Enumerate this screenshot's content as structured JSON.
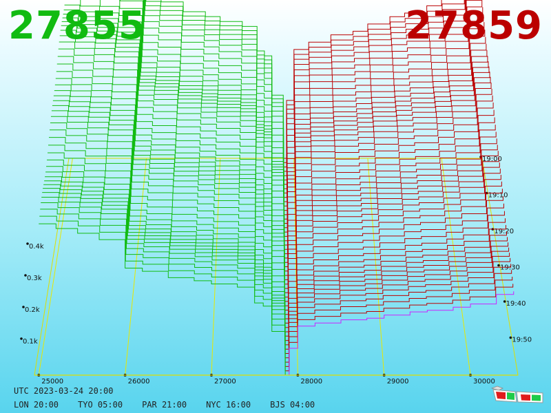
{
  "header": {
    "bid_price": "27855",
    "ask_price": "27859",
    "bid_color": "#11bb11",
    "ask_color": "#bb0000"
  },
  "footer": {
    "utc": "UTC 2023-03-24 20:00",
    "timezones": [
      "LON 20:00",
      "TYO 05:00",
      "PAR 21:00",
      "NYC 16:00",
      "BJS 04:00"
    ]
  },
  "icons": {
    "glasses": "3d-glasses-icon"
  },
  "chart_data": {
    "type": "area",
    "price_axis": {
      "ticks": [
        25000,
        26000,
        27000,
        28000,
        29000,
        30000
      ],
      "labels": [
        "25000",
        "26000",
        "27000",
        "28000",
        "29000",
        "30000"
      ],
      "range": [
        24950,
        30550
      ]
    },
    "volume_axis": {
      "ticks": [
        100,
        200,
        300,
        400
      ],
      "labels": [
        "0.1k",
        "0.2k",
        "0.3k",
        "0.4k"
      ]
    },
    "time_axis": {
      "labels": [
        "19:00",
        "19:10",
        "19:20",
        "19:30",
        "19:40",
        "19:50"
      ],
      "newest": "20:00"
    },
    "series": [
      {
        "name": "bids",
        "color": "#11bb11",
        "price": [
          25000,
          25200,
          25450,
          25700,
          26000,
          26200,
          26500,
          26800,
          27000,
          27300,
          27500,
          27600,
          27700,
          27855
        ],
        "cumulative_volume": [
          470,
          455,
          440,
          420,
          330,
          320,
          300,
          290,
          280,
          270,
          220,
          210,
          130,
          0
        ]
      },
      {
        "name": "asks",
        "color": "#bb0000",
        "price": [
          27859,
          27900,
          28000,
          28200,
          28500,
          28800,
          29000,
          29300,
          29500,
          29800,
          30000,
          30300,
          30500
        ],
        "cumulative_volume": [
          0,
          80,
          150,
          160,
          170,
          175,
          185,
          195,
          200,
          210,
          220,
          250,
          260
        ]
      }
    ]
  }
}
